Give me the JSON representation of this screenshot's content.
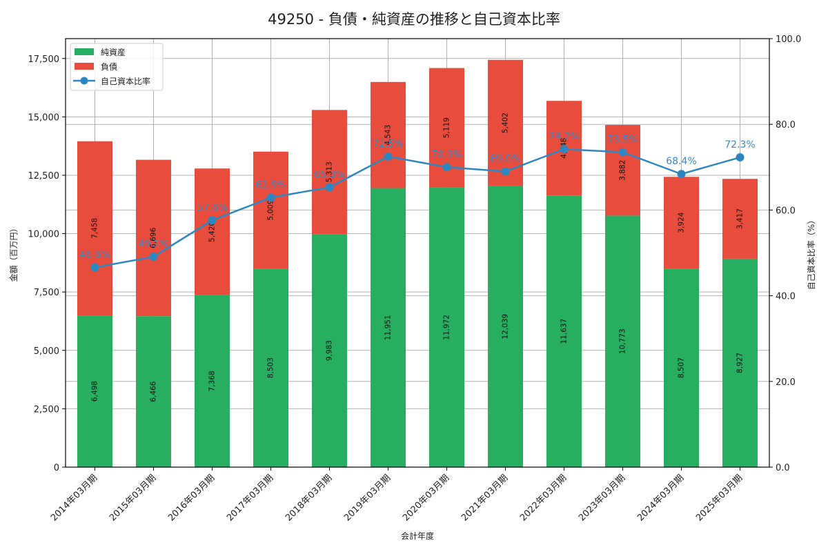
{
  "title": "49250 - 負債・純資産の推移と自己資本比率",
  "colors": {
    "net_assets": "#27ae60",
    "liabilities": "#e74c3c",
    "equity_ratio": "#2e86c1",
    "grid": "#b0b0b0"
  },
  "chart_data": {
    "type": "bar",
    "subtype": "stacked-bar-with-line",
    "title": "49250 - 負債・純資産の推移と自己資本比率",
    "xlabel": "会計年度",
    "ylabel": "金額（百万円）",
    "y2label": "自己資本比率（%）",
    "ylim": [
      0,
      18350
    ],
    "y2lim": [
      0,
      100
    ],
    "yticks": [
      "0",
      "2,500",
      "5,000",
      "7,500",
      "10,000",
      "12,500",
      "15,000",
      "17,500"
    ],
    "y2ticks": [
      "0.0",
      "20.0",
      "40.0",
      "60.0",
      "80.0",
      "100.0"
    ],
    "grid": true,
    "legend_position": "upper left",
    "categories": [
      "2014年03月期",
      "2015年03月期",
      "2016年03月期",
      "2017年03月期",
      "2018年03月期",
      "2019年03月期",
      "2020年03月期",
      "2021年03月期",
      "2022年03月期",
      "2023年03月期",
      "2024年03月期",
      "2025年03月期"
    ],
    "series": [
      {
        "name": "純資産",
        "type": "bar",
        "axis": "left",
        "values": [
          6498,
          6466,
          7368,
          8503,
          9983,
          11951,
          11972,
          12039,
          11637,
          10773,
          8507,
          8927
        ],
        "labels": [
          "6,498",
          "6,466",
          "7,368",
          "8,503",
          "9,983",
          "11,951",
          "11,972",
          "12,039",
          "11,637",
          "10,773",
          "8,507",
          "8,927"
        ]
      },
      {
        "name": "負債",
        "type": "bar",
        "axis": "left",
        "values": [
          7458,
          6696,
          5420,
          5009,
          5313,
          4543,
          5119,
          5402,
          4048,
          3882,
          3924,
          3417
        ],
        "labels": [
          "7,458",
          "6,696",
          "5,420",
          "5,009",
          "5,313",
          "4,543",
          "5,119",
          "5,402",
          "4,048",
          "3,882",
          "3,924",
          "3,417"
        ]
      },
      {
        "name": "自己資本比率",
        "type": "line",
        "axis": "right",
        "values": [
          46.6,
          49.1,
          57.6,
          62.9,
          65.3,
          72.5,
          70.0,
          69.0,
          74.2,
          73.5,
          68.4,
          72.3
        ],
        "labels": [
          "46.6%",
          "49.1%",
          "57.6%",
          "62.9%",
          "65.3%",
          "72.5%",
          "70.0%",
          "69.0%",
          "74.2%",
          "73.5%",
          "68.4%",
          "72.3%"
        ]
      }
    ]
  }
}
